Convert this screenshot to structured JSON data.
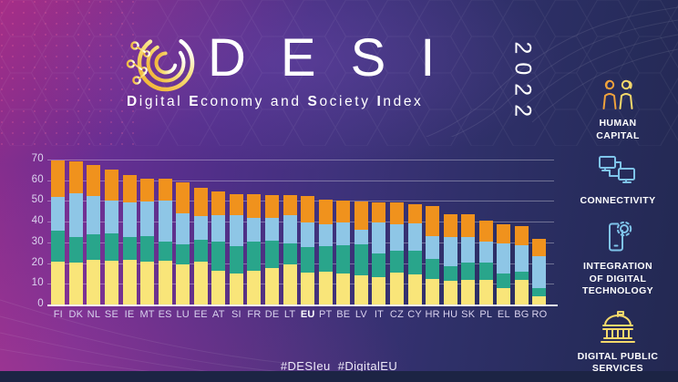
{
  "header": {
    "title": "DESI",
    "year": "2022",
    "subtitle": "Digital Economy and Society Index"
  },
  "legend": {
    "items": [
      {
        "id": "human-capital",
        "icon": "people-icon",
        "lines": [
          "HUMAN",
          "CAPITAL"
        ]
      },
      {
        "id": "connectivity",
        "icon": "monitors-icon",
        "lines": [
          "CONNECTIVITY"
        ]
      },
      {
        "id": "integration-of-digital-technology",
        "icon": "phone-gear-icon",
        "lines": [
          "INTEGRATION",
          "OF DIGITAL",
          "TECHNOLOGY"
        ]
      },
      {
        "id": "digital-public-services",
        "icon": "government-building-icon",
        "lines": [
          "DIGITAL PUBLIC",
          "SERVICES"
        ]
      }
    ]
  },
  "chart_data": {
    "type": "bar",
    "stacked": true,
    "title": "DESI 2022 ranking by Member State",
    "categories": [
      "FI",
      "DK",
      "NL",
      "SE",
      "IE",
      "MT",
      "ES",
      "LU",
      "EE",
      "AT",
      "SI",
      "FR",
      "DE",
      "LT",
      "EU",
      "PT",
      "BE",
      "LV",
      "IT",
      "CZ",
      "CY",
      "HR",
      "HU",
      "SK",
      "PL",
      "EL",
      "BG",
      "RO"
    ],
    "emphasized_category": "EU",
    "series": [
      {
        "id": "human-capital",
        "name": "Human capital",
        "color": "#F9E579",
        "values": [
          20.5,
          20.1,
          21.4,
          21.0,
          21.7,
          20.7,
          21.3,
          19.5,
          20.5,
          16.3,
          15.1,
          16.1,
          17.5,
          19.2,
          15.4,
          16.0,
          15.1,
          14.1,
          13.2,
          15.3,
          14.4,
          12.3,
          11.4,
          11.9,
          11.7,
          7.8,
          11.7,
          4.0
        ]
      },
      {
        "id": "connectivity",
        "name": "Connectivity",
        "color": "#29A58B",
        "values": [
          15.2,
          12.3,
          12.4,
          13.5,
          10.9,
          12.3,
          9.2,
          9.6,
          10.8,
          14.0,
          13.2,
          14.4,
          13.2,
          10.2,
          12.3,
          12.3,
          13.7,
          14.8,
          11.3,
          10.8,
          11.4,
          9.7,
          7.1,
          8.4,
          8.5,
          7.0,
          4.1,
          4.0
        ]
      },
      {
        "id": "integration-of-digital-technology",
        "name": "Integration of digital technology",
        "color": "#8EC6E6",
        "values": [
          16.1,
          21.3,
          18.5,
          15.9,
          16.7,
          16.9,
          19.7,
          14.9,
          11.3,
          13.0,
          15.0,
          11.2,
          11.0,
          13.6,
          11.9,
          10.3,
          10.7,
          7.4,
          15.0,
          12.5,
          13.4,
          10.9,
          14.1,
          12.2,
          10.1,
          14.5,
          12.7,
          15.5
        ]
      },
      {
        "id": "digital-public-services",
        "name": "Digital public services",
        "color": "#F0921D",
        "values": [
          17.8,
          15.6,
          15.1,
          14.8,
          13.4,
          11.0,
          10.6,
          14.9,
          13.9,
          11.4,
          10.1,
          11.6,
          11.2,
          9.7,
          12.7,
          12.2,
          10.8,
          13.4,
          9.8,
          10.5,
          9.2,
          14.6,
          11.2,
          10.9,
          10.2,
          9.6,
          9.2,
          8.0
        ]
      }
    ],
    "totals": [
      69.6,
      69.3,
      67.4,
      65.2,
      62.7,
      60.9,
      60.8,
      58.9,
      56.5,
      54.7,
      53.4,
      53.3,
      52.9,
      52.7,
      52.3,
      50.8,
      50.3,
      49.7,
      49.3,
      49.1,
      48.4,
      47.5,
      43.8,
      43.4,
      40.5,
      38.9,
      37.7,
      31.5
    ],
    "ylim": [
      0,
      70
    ],
    "yticks": [
      0,
      10,
      20,
      30,
      40,
      50,
      60,
      70
    ],
    "grid": true,
    "legend_position": "right-sidebar"
  },
  "footer": {
    "hashtags": "#DESIeu  #DigitalEU"
  },
  "colors": {
    "human_capital": "#F9E579",
    "connectivity": "#29A58B",
    "integration_of_digital_technology": "#8EC6E6",
    "digital_public_services": "#F0921D",
    "background_left": "#8C2D8C",
    "background_right": "#232851",
    "bottom_strip": "#1C2444",
    "gridline": "rgba(255,255,255,0.33)",
    "axis_text": "#DCD4F0"
  }
}
